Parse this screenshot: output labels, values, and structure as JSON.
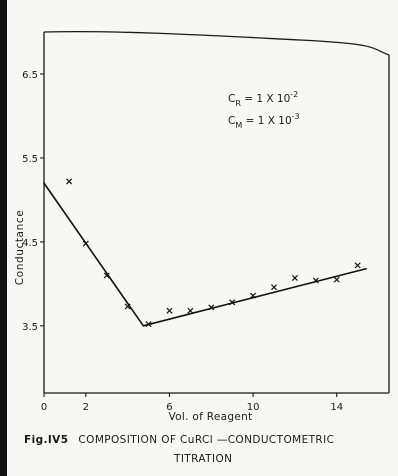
{
  "chart_data": {
    "type": "line",
    "title": "",
    "xlabel": "Vol. of Reagent",
    "ylabel": "Conductance",
    "xlim": [
      0,
      16.5
    ],
    "ylim": [
      2.7,
      7.0
    ],
    "x_ticks": [
      0,
      2,
      6,
      10,
      14
    ],
    "x_tick_labels": [
      "0",
      "2",
      "6",
      "10",
      "14"
    ],
    "y_ticks": [
      3.5,
      4.5,
      5.5,
      6.5
    ],
    "y_tick_labels": [
      "3.5",
      "4.5",
      "5.5",
      "6.5"
    ],
    "grid": false,
    "annotations": {
      "cr_label": "C",
      "cr_sub": "R",
      "cr_value": " = 1 X 10",
      "cr_exp": "-2",
      "cm_label": "C",
      "cm_sub": "M",
      "cm_value": " = 1 X 10",
      "cm_exp": "-3"
    },
    "points": [
      {
        "x": 1.2,
        "y": 5.22
      },
      {
        "x": 2.0,
        "y": 4.48
      },
      {
        "x": 3.0,
        "y": 4.1
      },
      {
        "x": 4.0,
        "y": 3.73
      },
      {
        "x": 5.0,
        "y": 3.52
      },
      {
        "x": 6.0,
        "y": 3.68
      },
      {
        "x": 7.0,
        "y": 3.68
      },
      {
        "x": 8.0,
        "y": 3.72
      },
      {
        "x": 9.0,
        "y": 3.78
      },
      {
        "x": 10.0,
        "y": 3.86
      },
      {
        "x": 11.0,
        "y": 3.96
      },
      {
        "x": 12.0,
        "y": 4.07
      },
      {
        "x": 13.0,
        "y": 4.04
      },
      {
        "x": 14.0,
        "y": 4.05
      },
      {
        "x": 15.0,
        "y": 4.22
      }
    ],
    "fit_lines": [
      {
        "x": [
          0.0,
          4.75
        ],
        "y": [
          5.2,
          3.5
        ]
      },
      {
        "x": [
          4.75,
          15.4
        ],
        "y": [
          3.5,
          4.18
        ]
      }
    ]
  },
  "caption": {
    "figure_number": "Fig.IV5",
    "line1": "COMPOSITION OF CuRCl —CONDUCTOMETRIC",
    "line2": "TITRATION"
  }
}
